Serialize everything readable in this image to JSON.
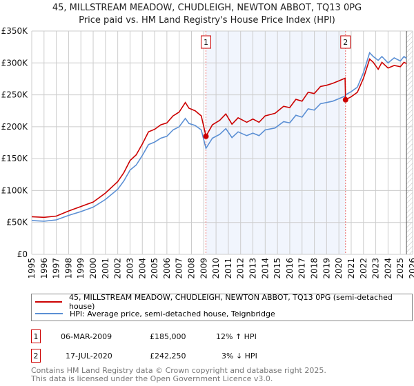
{
  "chart_data": {
    "type": "line",
    "title": "45, MILLSTREAM MEADOW, CHUDLEIGH, NEWTON ABBOT, TQ13 0PG",
    "subtitle": "Price paid vs. HM Land Registry's House Price Index (HPI)",
    "xlim": [
      1995,
      2026
    ],
    "ylim": [
      0,
      350000
    ],
    "xticks": [
      "1995",
      "1996",
      "1997",
      "1998",
      "1999",
      "2000",
      "2001",
      "2002",
      "2003",
      "2004",
      "2005",
      "2006",
      "2007",
      "2008",
      "2009",
      "2010",
      "2011",
      "2012",
      "2013",
      "2014",
      "2015",
      "2016",
      "2017",
      "2018",
      "2019",
      "2020",
      "2021",
      "2022",
      "2023",
      "2024",
      "2025",
      "2026"
    ],
    "yticks": [
      {
        "v": 0,
        "label": "£0"
      },
      {
        "v": 50000,
        "label": "£50K"
      },
      {
        "v": 100000,
        "label": "£100K"
      },
      {
        "v": 150000,
        "label": "£150K"
      },
      {
        "v": 200000,
        "label": "£200K"
      },
      {
        "v": 250000,
        "label": "£250K"
      },
      {
        "v": 300000,
        "label": "£300K"
      },
      {
        "v": 350000,
        "label": "£350K"
      }
    ],
    "grid": true,
    "x": [
      1995,
      1996,
      1997,
      1998,
      1999,
      2000,
      2001,
      2002,
      2002.5,
      2003,
      2003.5,
      2004,
      2004.5,
      2005,
      2005.5,
      2006,
      2006.5,
      2007,
      2007.5,
      2007.8,
      2008.3,
      2008.8,
      2009.18,
      2009.7,
      2010.3,
      2010.8,
      2011.3,
      2011.8,
      2012.5,
      2013,
      2013.5,
      2014,
      2014.8,
      2015.5,
      2016,
      2016.5,
      2017,
      2017.5,
      2018,
      2018.5,
      2019,
      2019.5,
      2020,
      2020.5,
      2020.54,
      2021,
      2021.5,
      2022,
      2022.5,
      2022.8,
      2023.2,
      2023.5,
      2024,
      2024.5,
      2025,
      2025.3,
      2025.5
    ],
    "series": [
      {
        "name": "45, MILLSTREAM MEADOW, CHUDLEIGH, NEWTON ABBOT, TQ13 0PG (semi-detached house)",
        "color": "#cc0000",
        "values": [
          59,
          58,
          60,
          68,
          75,
          82,
          96,
          114,
          128,
          147,
          156,
          173,
          192,
          196,
          203,
          206,
          217,
          223,
          238,
          229,
          225,
          217,
          185,
          203,
          210,
          220,
          204,
          214,
          207,
          212,
          207,
          217,
          221,
          232,
          230,
          243,
          240,
          254,
          252,
          263,
          265,
          268,
          272,
          276,
          242.25,
          247,
          254,
          276,
          306,
          301,
          290,
          301,
          292,
          296,
          294,
          301,
          299
        ]
      },
      {
        "name": "HPI: Average price, semi-detached house, Teignbridge",
        "color": "#5b8fd4",
        "values": [
          53,
          52,
          54,
          61,
          67,
          74,
          86,
          102,
          115,
          132,
          140,
          155,
          172,
          176,
          182,
          185,
          195,
          200,
          213,
          205,
          202,
          195,
          166,
          182,
          188,
          197,
          183,
          192,
          186,
          190,
          186,
          195,
          198,
          208,
          206,
          218,
          215,
          228,
          226,
          236,
          238,
          240,
          244,
          248,
          250,
          255,
          262,
          285,
          316,
          310,
          304,
          310,
          300,
          308,
          303,
          310,
          307
        ]
      }
    ],
    "value_unit": "thousand GBP",
    "sales": [
      {
        "num": "1",
        "x": 2009.18,
        "value": 185,
        "date": "06-MAR-2009",
        "price": "£185,000",
        "hpi": "12% ↑ HPI"
      },
      {
        "num": "2",
        "x": 2020.54,
        "value": 242.25,
        "date": "17-JUL-2020",
        "price": "£242,250",
        "hpi": "3% ↓ HPI"
      }
    ],
    "forecast_from": 2025.5,
    "legend_placement": "below"
  },
  "footer": {
    "line1": "Contains HM Land Registry data © Crown copyright and database right 2025.",
    "line2": "This data is licensed under the Open Government Licence v3.0."
  }
}
